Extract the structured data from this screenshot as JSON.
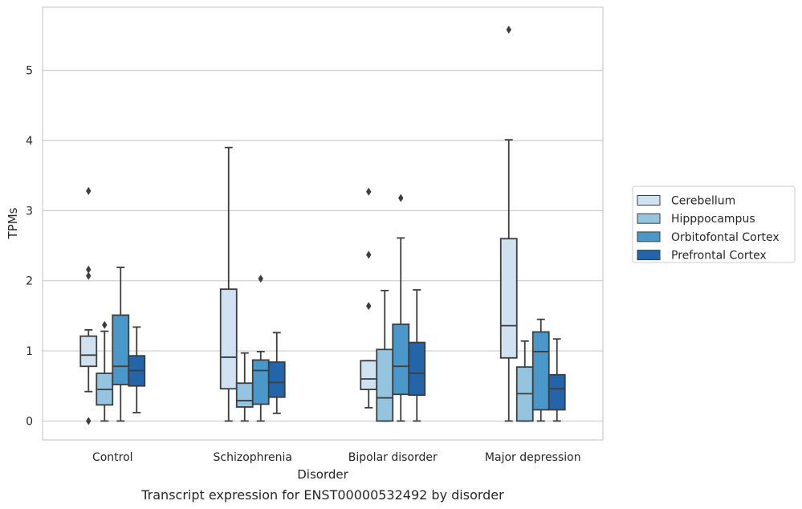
{
  "chart_data": {
    "type": "box",
    "title": "",
    "caption": "Transcript expression for ENST00000532492 by disorder",
    "xlabel": "Disorder",
    "ylabel": "TPMs",
    "ylim": [
      -0.27,
      5.9
    ],
    "yticks": [
      0,
      1,
      2,
      3,
      4,
      5
    ],
    "grid": true,
    "legend_position": "center-right",
    "categories": [
      "Control",
      "Schizophrenia",
      "Bipolar disorder",
      "Major depression"
    ],
    "series": [
      {
        "name": "Cerebellum",
        "color": "#d0e1f2",
        "boxes": [
          {
            "whislo": 0.42,
            "q1": 0.78,
            "med": 0.94,
            "q3": 1.21,
            "whishi": 1.3,
            "fliers": [
              3.28,
              2.16,
              2.07,
              0.0
            ]
          },
          {
            "whislo": 0.0,
            "q1": 0.46,
            "med": 0.91,
            "q3": 1.88,
            "whishi": 3.9,
            "fliers": []
          },
          {
            "whislo": 0.19,
            "q1": 0.45,
            "med": 0.6,
            "q3": 0.86,
            "whishi": 0.86,
            "fliers": [
              3.27,
              2.37,
              1.64
            ]
          },
          {
            "whislo": 0.0,
            "q1": 0.9,
            "med": 1.36,
            "q3": 2.6,
            "whishi": 4.01,
            "fliers": [
              5.58
            ]
          }
        ]
      },
      {
        "name": "Hipppocampus",
        "color": "#94c4df",
        "boxes": [
          {
            "whislo": 0.0,
            "q1": 0.23,
            "med": 0.45,
            "q3": 0.68,
            "whishi": 1.28,
            "fliers": [
              1.37
            ]
          },
          {
            "whislo": 0.0,
            "q1": 0.2,
            "med": 0.29,
            "q3": 0.54,
            "whishi": 0.97,
            "fliers": []
          },
          {
            "whislo": 0.0,
            "q1": 0.0,
            "med": 0.33,
            "q3": 1.02,
            "whishi": 1.86,
            "fliers": []
          },
          {
            "whislo": 0.0,
            "q1": 0.0,
            "med": 0.39,
            "q3": 0.77,
            "whishi": 1.14,
            "fliers": []
          }
        ]
      },
      {
        "name": "Orbitofontal Cortex",
        "color": "#4a98c9",
        "boxes": [
          {
            "whislo": 0.0,
            "q1": 0.52,
            "med": 0.78,
            "q3": 1.51,
            "whishi": 2.19,
            "fliers": []
          },
          {
            "whislo": 0.0,
            "q1": 0.24,
            "med": 0.72,
            "q3": 0.87,
            "whishi": 0.99,
            "fliers": [
              2.03
            ]
          },
          {
            "whislo": 0.0,
            "q1": 0.38,
            "med": 0.78,
            "q3": 1.38,
            "whishi": 2.61,
            "fliers": [
              3.18
            ]
          },
          {
            "whislo": 0.0,
            "q1": 0.16,
            "med": 0.99,
            "q3": 1.27,
            "whishi": 1.45,
            "fliers": []
          }
        ]
      },
      {
        "name": "Prefrontal Cortex",
        "color": "#2464a8",
        "boxes": [
          {
            "whislo": 0.12,
            "q1": 0.5,
            "med": 0.72,
            "q3": 0.93,
            "whishi": 1.34,
            "fliers": []
          },
          {
            "whislo": 0.11,
            "q1": 0.34,
            "med": 0.55,
            "q3": 0.84,
            "whishi": 1.26,
            "fliers": []
          },
          {
            "whislo": 0.0,
            "q1": 0.37,
            "med": 0.68,
            "q3": 1.12,
            "whishi": 1.87,
            "fliers": []
          },
          {
            "whislo": 0.0,
            "q1": 0.16,
            "med": 0.46,
            "q3": 0.66,
            "whishi": 1.17,
            "fliers": []
          }
        ]
      }
    ]
  }
}
